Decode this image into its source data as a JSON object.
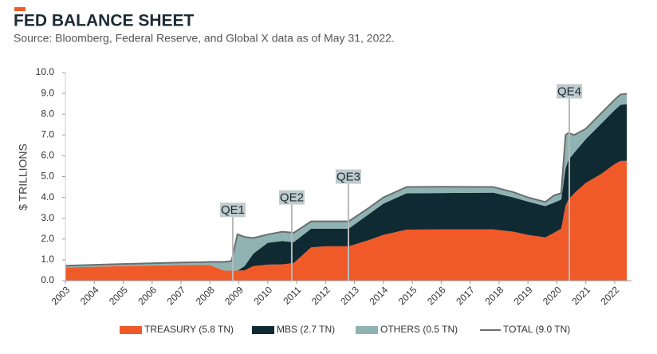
{
  "chart_data": {
    "type": "stacked_area",
    "title": "FED BALANCE SHEET",
    "subtitle": "Source: Bloomberg, Federal Reserve, and Global X data as of May 31, 2022.",
    "y_label": "$ TRILLIONS",
    "x": [
      2003.0,
      2005.0,
      2007.0,
      2008.0,
      2008.5,
      2008.75,
      2008.95,
      2009.2,
      2009.5,
      2010.0,
      2010.5,
      2010.9,
      2011.5,
      2012.0,
      2012.8,
      2013.5,
      2014.0,
      2014.8,
      2016.0,
      2017.8,
      2018.5,
      2019.0,
      2019.6,
      2019.9,
      2020.15,
      2020.3,
      2020.4,
      2020.6,
      2021.0,
      2021.5,
      2022.0,
      2022.2,
      2022.42
    ],
    "series": [
      {
        "name": "TREASURY (5.8 TN)",
        "color": "#f05a28",
        "values": [
          0.63,
          0.7,
          0.75,
          0.75,
          0.48,
          0.48,
          0.48,
          0.5,
          0.7,
          0.77,
          0.78,
          0.85,
          1.6,
          1.65,
          1.65,
          1.95,
          2.2,
          2.45,
          2.46,
          2.46,
          2.35,
          2.2,
          2.08,
          2.3,
          2.5,
          3.6,
          3.9,
          4.2,
          4.7,
          5.1,
          5.6,
          5.75,
          5.76
        ]
      },
      {
        "name": "MBS (2.7 TN)",
        "color": "#0f2a33",
        "values": [
          0,
          0,
          0,
          0,
          0,
          0,
          0,
          0.2,
          0.6,
          1.05,
          1.12,
          1.0,
          0.9,
          0.85,
          0.85,
          1.25,
          1.5,
          1.75,
          1.75,
          1.77,
          1.65,
          1.6,
          1.5,
          1.45,
          1.4,
          1.8,
          1.9,
          1.95,
          2.1,
          2.4,
          2.6,
          2.7,
          2.72
        ]
      },
      {
        "name": "OTHERS (0.5 TN)",
        "color": "#8fb3b3",
        "values": [
          0.09,
          0.1,
          0.12,
          0.15,
          0.42,
          0.47,
          1.75,
          1.4,
          0.75,
          0.4,
          0.45,
          0.45,
          0.35,
          0.35,
          0.35,
          0.3,
          0.3,
          0.3,
          0.3,
          0.27,
          0.25,
          0.2,
          0.2,
          0.35,
          0.3,
          1.6,
          1.3,
          0.85,
          0.5,
          0.5,
          0.5,
          0.5,
          0.5
        ]
      }
    ],
    "total": {
      "name": "TOTAL (9.0 TN)",
      "color": "#6d6d6d",
      "values": [
        0.72,
        0.8,
        0.87,
        0.9,
        0.9,
        0.95,
        2.23,
        2.1,
        2.05,
        2.22,
        2.35,
        2.3,
        2.85,
        2.85,
        2.85,
        3.5,
        4.0,
        4.5,
        4.51,
        4.5,
        4.25,
        4.0,
        3.78,
        4.1,
        4.2,
        7.0,
        7.1,
        7.0,
        7.3,
        8.0,
        8.7,
        8.95,
        8.98
      ]
    },
    "annotations": [
      {
        "label": "QE1",
        "x": 2008.79,
        "y": 3.4
      },
      {
        "label": "QE2",
        "x": 2010.83,
        "y": 4.0
      },
      {
        "label": "QE3",
        "x": 2012.79,
        "y": 5.0
      },
      {
        "label": "QE4",
        "x": 2020.43,
        "y": 9.1
      }
    ],
    "xlim": [
      2003,
      2022.58
    ],
    "xticks": [
      2003,
      2004,
      2005,
      2006,
      2007,
      2008,
      2009,
      2010,
      2011,
      2012,
      2013,
      2014,
      2015,
      2016,
      2017,
      2018,
      2019,
      2020,
      2021,
      2022
    ],
    "ylim": [
      0,
      10
    ],
    "yticks": [
      {
        "value": 0,
        "label": "0.0"
      },
      {
        "value": 1,
        "label": "1.0"
      },
      {
        "value": 2,
        "label": "2.0"
      },
      {
        "value": 3,
        "label": "3.0"
      },
      {
        "value": 4,
        "label": "4.0"
      },
      {
        "value": 5,
        "label": "5.0"
      },
      {
        "value": 6,
        "label": "6.0"
      },
      {
        "value": 7,
        "label": "7.0"
      },
      {
        "value": 8,
        "label": "8.0"
      },
      {
        "value": 9,
        "label": "9.0"
      },
      {
        "value": 10,
        "label": "10.0"
      }
    ],
    "grid": false,
    "legend": "bottom"
  }
}
